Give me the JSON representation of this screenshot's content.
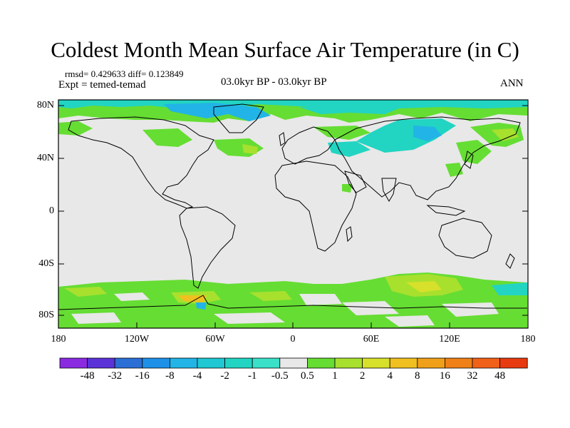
{
  "title": "Coldest Month Mean Surface Air Temperature (in C)",
  "stats": "rmsd= 0.429633  diff= 0.123849",
  "experiment": "Expt = temed-temad",
  "subtitle": "03.0kyr BP - 03.0kyr BP",
  "season": "ANN",
  "lat_labels": [
    "80N",
    "40N",
    "0",
    "40S",
    "80S"
  ],
  "lon_labels": [
    "180",
    "120W",
    "60W",
    "0",
    "60E",
    "120E",
    "180"
  ],
  "colorbar": {
    "labels": [
      "-48",
      "-32",
      "-16",
      "-8",
      "-4",
      "-2",
      "-1",
      "-0.5",
      "0.5",
      "1",
      "2",
      "4",
      "8",
      "16",
      "32",
      "48"
    ],
    "colors": [
      "#8a2be2",
      "#5a32d8",
      "#2b6fd6",
      "#1e90e8",
      "#22b4e6",
      "#1fc8d2",
      "#22d4c2",
      "#3ae0c8",
      "#e8e8e8",
      "#66dd33",
      "#a8e02e",
      "#d7e02a",
      "#f0c020",
      "#f0a018",
      "#f08018",
      "#f06018",
      "#e83a10"
    ]
  },
  "legend_colors": {
    "land_neutral": "#e8e8e8",
    "positive_weak": "#66dd33",
    "positive_mid": "#a8e02e",
    "positive_strong": "#e0a020",
    "negative_weak": "#22d4c2",
    "negative_mid": "#22b4e6"
  }
}
